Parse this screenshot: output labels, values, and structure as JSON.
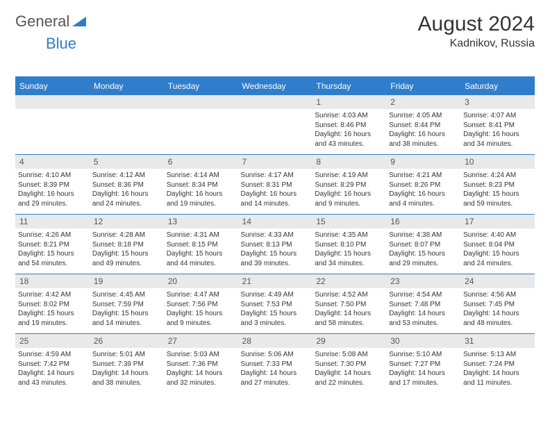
{
  "logo": {
    "word1": "General",
    "word2": "Blue"
  },
  "title": "August 2024",
  "location": "Kadnikov, Russia",
  "colors": {
    "accent": "#2f7dcb",
    "header_text": "#ffffff",
    "daynum_bg": "#e9e9e9",
    "body_text": "#333333",
    "muted_text": "#555555",
    "background": "#ffffff"
  },
  "typography": {
    "title_fontsize": 30,
    "location_fontsize": 16,
    "header_fontsize": 12,
    "daynum_fontsize": 12,
    "cell_fontsize": 10
  },
  "layout": {
    "columns": 7,
    "weeks": 5
  },
  "day_headers": [
    "Sunday",
    "Monday",
    "Tuesday",
    "Wednesday",
    "Thursday",
    "Friday",
    "Saturday"
  ],
  "weeks": [
    [
      null,
      null,
      null,
      null,
      {
        "n": "1",
        "sunrise": "4:03 AM",
        "sunset": "8:46 PM",
        "daylight": "16 hours and 43 minutes."
      },
      {
        "n": "2",
        "sunrise": "4:05 AM",
        "sunset": "8:44 PM",
        "daylight": "16 hours and 38 minutes."
      },
      {
        "n": "3",
        "sunrise": "4:07 AM",
        "sunset": "8:41 PM",
        "daylight": "16 hours and 34 minutes."
      }
    ],
    [
      {
        "n": "4",
        "sunrise": "4:10 AM",
        "sunset": "8:39 PM",
        "daylight": "16 hours and 29 minutes."
      },
      {
        "n": "5",
        "sunrise": "4:12 AM",
        "sunset": "8:36 PM",
        "daylight": "16 hours and 24 minutes."
      },
      {
        "n": "6",
        "sunrise": "4:14 AM",
        "sunset": "8:34 PM",
        "daylight": "16 hours and 19 minutes."
      },
      {
        "n": "7",
        "sunrise": "4:17 AM",
        "sunset": "8:31 PM",
        "daylight": "16 hours and 14 minutes."
      },
      {
        "n": "8",
        "sunrise": "4:19 AM",
        "sunset": "8:29 PM",
        "daylight": "16 hours and 9 minutes."
      },
      {
        "n": "9",
        "sunrise": "4:21 AM",
        "sunset": "8:26 PM",
        "daylight": "16 hours and 4 minutes."
      },
      {
        "n": "10",
        "sunrise": "4:24 AM",
        "sunset": "8:23 PM",
        "daylight": "15 hours and 59 minutes."
      }
    ],
    [
      {
        "n": "11",
        "sunrise": "4:26 AM",
        "sunset": "8:21 PM",
        "daylight": "15 hours and 54 minutes."
      },
      {
        "n": "12",
        "sunrise": "4:28 AM",
        "sunset": "8:18 PM",
        "daylight": "15 hours and 49 minutes."
      },
      {
        "n": "13",
        "sunrise": "4:31 AM",
        "sunset": "8:15 PM",
        "daylight": "15 hours and 44 minutes."
      },
      {
        "n": "14",
        "sunrise": "4:33 AM",
        "sunset": "8:13 PM",
        "daylight": "15 hours and 39 minutes."
      },
      {
        "n": "15",
        "sunrise": "4:35 AM",
        "sunset": "8:10 PM",
        "daylight": "15 hours and 34 minutes."
      },
      {
        "n": "16",
        "sunrise": "4:38 AM",
        "sunset": "8:07 PM",
        "daylight": "15 hours and 29 minutes."
      },
      {
        "n": "17",
        "sunrise": "4:40 AM",
        "sunset": "8:04 PM",
        "daylight": "15 hours and 24 minutes."
      }
    ],
    [
      {
        "n": "18",
        "sunrise": "4:42 AM",
        "sunset": "8:02 PM",
        "daylight": "15 hours and 19 minutes."
      },
      {
        "n": "19",
        "sunrise": "4:45 AM",
        "sunset": "7:59 PM",
        "daylight": "15 hours and 14 minutes."
      },
      {
        "n": "20",
        "sunrise": "4:47 AM",
        "sunset": "7:56 PM",
        "daylight": "15 hours and 9 minutes."
      },
      {
        "n": "21",
        "sunrise": "4:49 AM",
        "sunset": "7:53 PM",
        "daylight": "15 hours and 3 minutes."
      },
      {
        "n": "22",
        "sunrise": "4:52 AM",
        "sunset": "7:50 PM",
        "daylight": "14 hours and 58 minutes."
      },
      {
        "n": "23",
        "sunrise": "4:54 AM",
        "sunset": "7:48 PM",
        "daylight": "14 hours and 53 minutes."
      },
      {
        "n": "24",
        "sunrise": "4:56 AM",
        "sunset": "7:45 PM",
        "daylight": "14 hours and 48 minutes."
      }
    ],
    [
      {
        "n": "25",
        "sunrise": "4:59 AM",
        "sunset": "7:42 PM",
        "daylight": "14 hours and 43 minutes."
      },
      {
        "n": "26",
        "sunrise": "5:01 AM",
        "sunset": "7:39 PM",
        "daylight": "14 hours and 38 minutes."
      },
      {
        "n": "27",
        "sunrise": "5:03 AM",
        "sunset": "7:36 PM",
        "daylight": "14 hours and 32 minutes."
      },
      {
        "n": "28",
        "sunrise": "5:06 AM",
        "sunset": "7:33 PM",
        "daylight": "14 hours and 27 minutes."
      },
      {
        "n": "29",
        "sunrise": "5:08 AM",
        "sunset": "7:30 PM",
        "daylight": "14 hours and 22 minutes."
      },
      {
        "n": "30",
        "sunrise": "5:10 AM",
        "sunset": "7:27 PM",
        "daylight": "14 hours and 17 minutes."
      },
      {
        "n": "31",
        "sunrise": "5:13 AM",
        "sunset": "7:24 PM",
        "daylight": "14 hours and 11 minutes."
      }
    ]
  ],
  "labels": {
    "sunrise": "Sunrise: ",
    "sunset": "Sunset: ",
    "daylight": "Daylight: "
  }
}
